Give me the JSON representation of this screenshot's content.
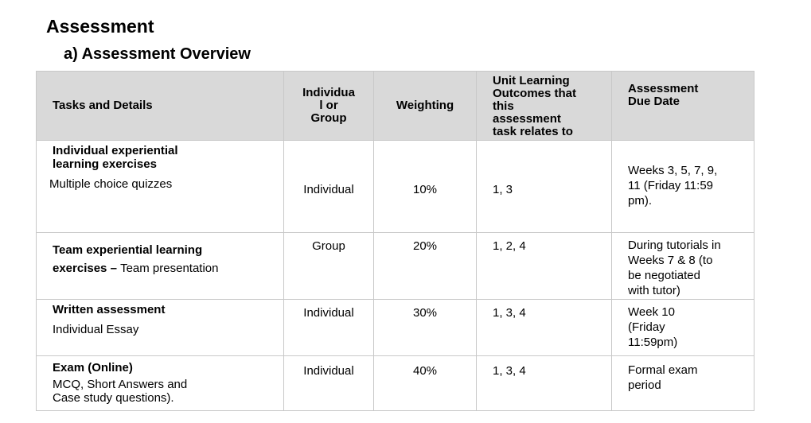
{
  "heading": "Assessment",
  "subheading": "a) Assessment Overview",
  "table": {
    "headers": {
      "tasks": "Tasks and Details",
      "individual": "Individua\nl or\nGroup",
      "weighting": "Weighting",
      "ulo": "Unit Learning\nOutcomes that\nthis\nassessment\ntask relates to",
      "due": "Assessment\nDue Date"
    },
    "rows": [
      {
        "task_title": "Individual experiential learning exercises",
        "task_detail": "Multiple choice quizzes",
        "mode": "Individual",
        "weighting": "10%",
        "ulo": "1, 3",
        "due": "Weeks 3, 5, 7, 9,\n11 (Friday 11:59\npm)."
      },
      {
        "task_title": "Team experiential learning\nexercises – ",
        "task_detail": "Team presentation",
        "mode": "Group",
        "weighting": "20%",
        "ulo": "1, 2, 4",
        "due": "During tutorials in\nWeeks 7 & 8 (to\nbe negotiated\nwith tutor)"
      },
      {
        "task_title": "Written assessment",
        "task_detail": "Individual Essay",
        "mode": "Individual",
        "weighting": "30%",
        "ulo": "1, 3, 4",
        "due": "Week 10\n(Friday\n11:59pm)"
      },
      {
        "task_title": "Exam (Online)",
        "task_detail": "MCQ, Short Answers and\nCase study questions).",
        "mode": "Individual",
        "weighting": "40%",
        "ulo": "1, 3, 4",
        "due": "Formal exam\nperiod"
      }
    ]
  }
}
